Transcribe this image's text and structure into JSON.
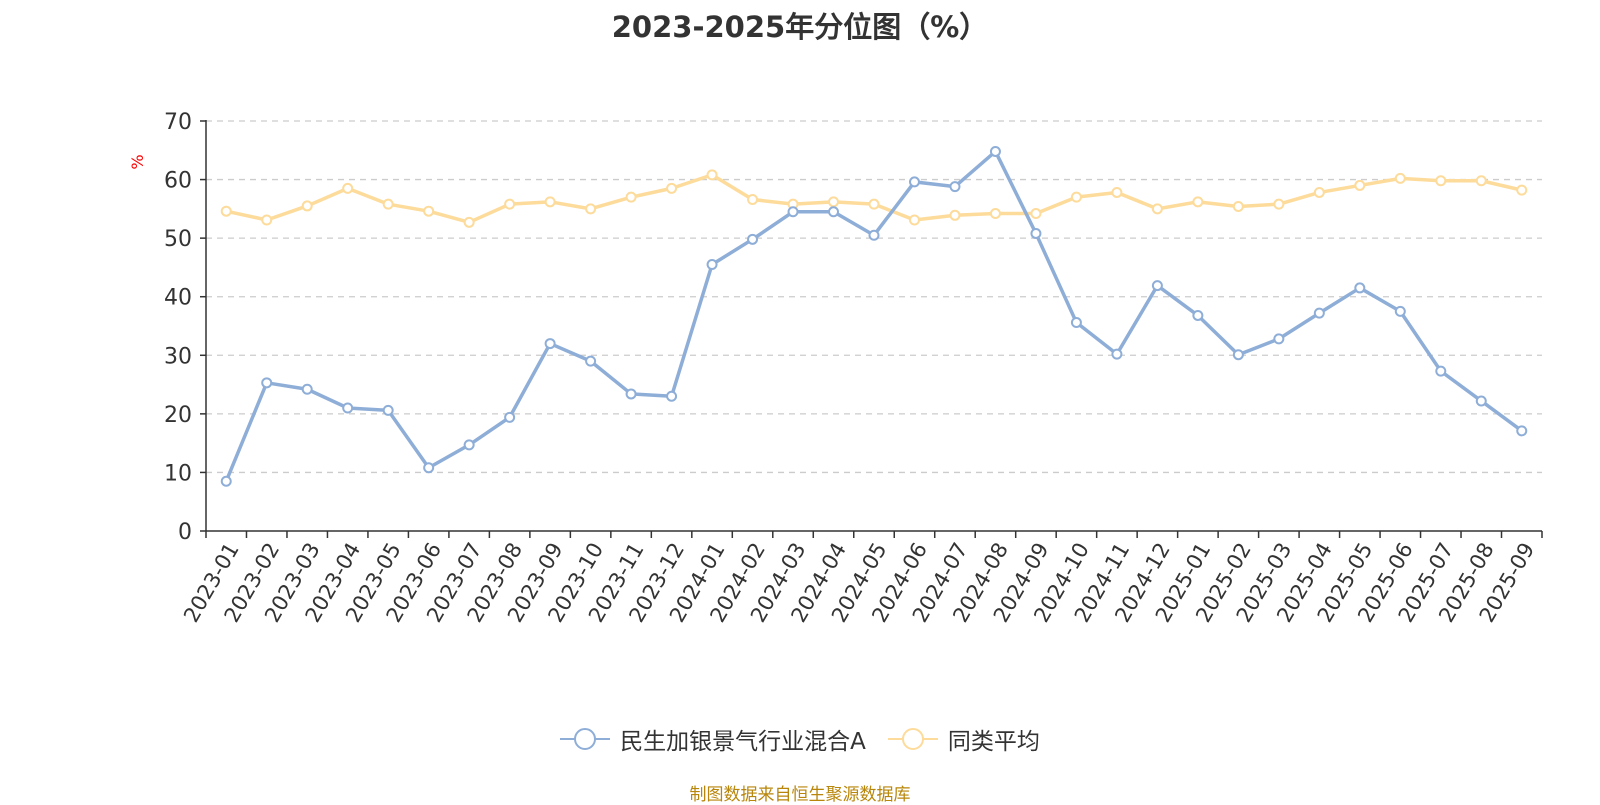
{
  "chart_data": {
    "type": "line",
    "title": "2023-2025年分位图（%）",
    "ylabel": "%",
    "xlabel": "",
    "ylim": [
      0,
      70
    ],
    "yticks": [
      0,
      10,
      20,
      30,
      40,
      50,
      60,
      70
    ],
    "grid": "horizontal-dashed",
    "legend_position": "bottom",
    "categories": [
      "2023-01",
      "2023-02",
      "2023-03",
      "2023-04",
      "2023-05",
      "2023-06",
      "2023-07",
      "2023-08",
      "2023-09",
      "2023-10",
      "2023-11",
      "2023-12",
      "2024-01",
      "2024-02",
      "2024-03",
      "2024-04",
      "2024-05",
      "2024-06",
      "2024-07",
      "2024-08",
      "2024-09",
      "2024-10",
      "2024-11",
      "2024-12",
      "2025-01",
      "2025-02",
      "2025-03",
      "2025-04",
      "2025-05",
      "2025-06",
      "2025-07",
      "2025-08",
      "2025-09"
    ],
    "series": [
      {
        "name": "民生加银景气行业混合A",
        "color": "#8eaed8",
        "values": [
          8.5,
          25.3,
          24.2,
          21.0,
          20.6,
          10.8,
          14.7,
          19.4,
          32.0,
          29.0,
          23.4,
          23.0,
          45.5,
          49.8,
          54.5,
          54.5,
          50.5,
          59.6,
          58.8,
          64.8,
          50.8,
          35.6,
          30.2,
          41.9,
          36.8,
          30.1,
          32.8,
          37.2,
          41.5,
          37.5,
          27.3,
          22.2,
          17.1
        ]
      },
      {
        "name": "同类平均",
        "color": "#fddb9b",
        "values": [
          54.6,
          53.1,
          55.5,
          58.5,
          55.8,
          54.6,
          52.7,
          55.8,
          56.2,
          55.0,
          57.0,
          58.5,
          60.8,
          56.6,
          55.8,
          56.2,
          55.8,
          53.1,
          53.9,
          54.2,
          54.2,
          57.0,
          57.8,
          55.0,
          56.2,
          55.4,
          55.8,
          57.8,
          59.0,
          60.2,
          59.8,
          59.8,
          58.2
        ]
      }
    ]
  },
  "source_text": "制图数据来自恒生聚源数据库"
}
